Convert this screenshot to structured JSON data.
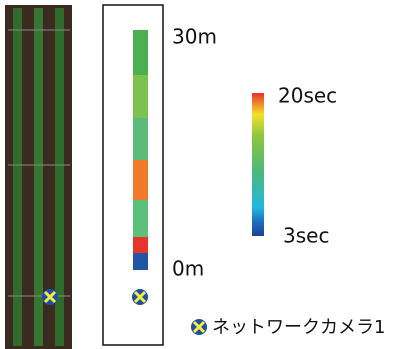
{
  "distance_scale": {
    "top": "30m",
    "bottom": "0m"
  },
  "color_scale": {
    "max": "20sec",
    "min": "3sec"
  },
  "legend": {
    "label": "ネットワークカメラ1"
  }
}
